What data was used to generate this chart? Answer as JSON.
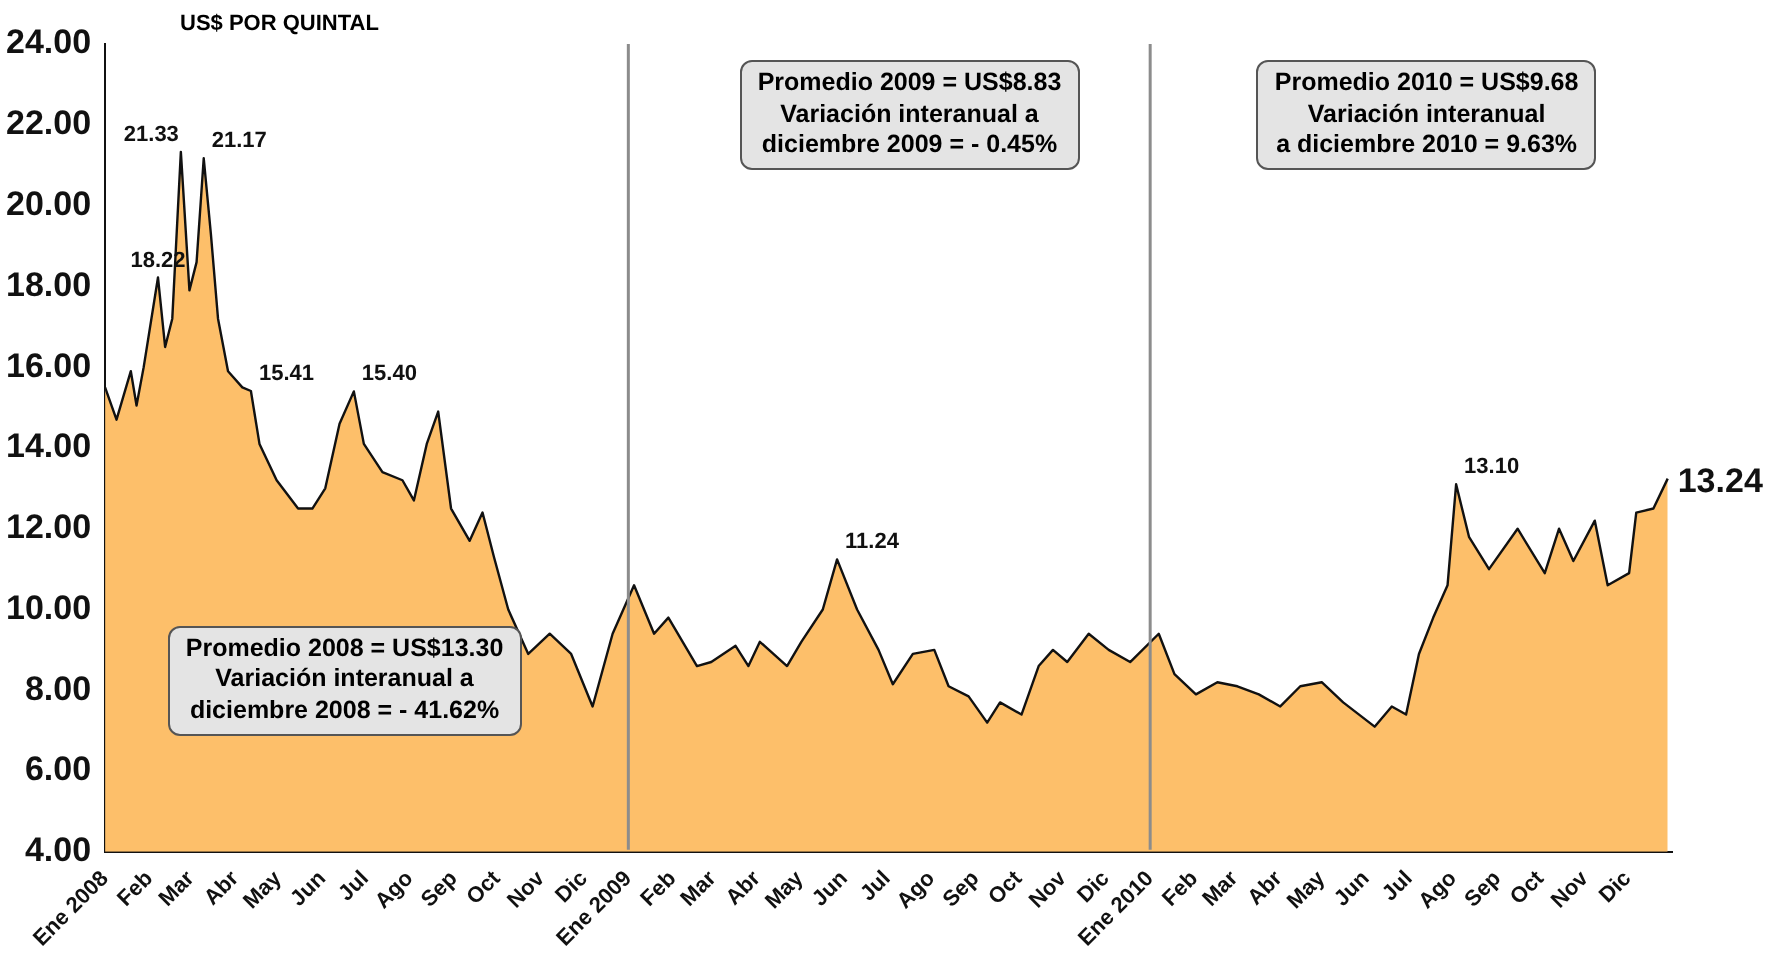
{
  "chart_data": {
    "type": "area",
    "ylabel": "US$ POR QUINTAL",
    "x": [
      "2008-01-01",
      "2008-01-09",
      "2008-01-19",
      "2008-01-23",
      "2008-01-28",
      "2008-02-07",
      "2008-02-12",
      "2008-02-17",
      "2008-02-23",
      "2008-02-29",
      "2008-03-05",
      "2008-03-10",
      "2008-03-15",
      "2008-03-20",
      "2008-03-27",
      "2008-04-06",
      "2008-04-12",
      "2008-04-18",
      "2008-04-30",
      "2008-05-15",
      "2008-05-25",
      "2008-06-03",
      "2008-06-13",
      "2008-06-23",
      "2008-06-30",
      "2008-07-13",
      "2008-07-27",
      "2008-08-04",
      "2008-08-13",
      "2008-08-21",
      "2008-08-30",
      "2008-09-12",
      "2008-09-21",
      "2008-09-29",
      "2008-10-09",
      "2008-10-23",
      "2008-11-07",
      "2008-11-22",
      "2008-12-07",
      "2008-12-21",
      "2009-01-05",
      "2009-01-19",
      "2009-01-29",
      "2009-02-18",
      "2009-02-28",
      "2009-03-17",
      "2009-03-26",
      "2009-04-03",
      "2009-04-22",
      "2009-05-02",
      "2009-05-17",
      "2009-05-27",
      "2009-06-10",
      "2009-06-25",
      "2009-07-05",
      "2009-07-19",
      "2009-08-03",
      "2009-08-13",
      "2009-08-27",
      "2009-09-09",
      "2009-09-18",
      "2009-10-03",
      "2009-10-15",
      "2009-10-25",
      "2009-11-04",
      "2009-11-19",
      "2009-12-03",
      "2009-12-18",
      "2010-01-07",
      "2010-01-18",
      "2010-02-02",
      "2010-02-17",
      "2010-03-03",
      "2010-03-18",
      "2010-04-02",
      "2010-04-16",
      "2010-05-01",
      "2010-05-16",
      "2010-06-07",
      "2010-06-19",
      "2010-06-29",
      "2010-07-08",
      "2010-07-18",
      "2010-07-28",
      "2010-08-03",
      "2010-08-12",
      "2010-08-26",
      "2010-09-15",
      "2010-10-04",
      "2010-10-14",
      "2010-10-24",
      "2010-11-08",
      "2010-11-17",
      "2010-12-02",
      "2010-12-07",
      "2010-12-19",
      "2010-12-29"
    ],
    "series": [
      {
        "color": "#fdbf6a",
        "values": [
          15.5,
          14.7,
          15.9,
          15.05,
          16.0,
          18.22,
          16.5,
          17.2,
          21.33,
          17.9,
          18.6,
          21.17,
          19.3,
          17.2,
          15.9,
          15.5,
          15.41,
          14.1,
          13.2,
          12.5,
          12.5,
          13.0,
          14.6,
          15.4,
          14.1,
          13.4,
          13.2,
          12.7,
          14.1,
          14.9,
          12.5,
          11.7,
          12.4,
          11.3,
          10.0,
          8.9,
          9.4,
          8.9,
          7.6,
          9.4,
          10.6,
          9.4,
          9.8,
          8.6,
          8.7,
          9.1,
          8.6,
          9.2,
          8.6,
          9.2,
          10.0,
          11.24,
          10.0,
          9.0,
          8.15,
          8.9,
          9.0,
          8.1,
          7.85,
          7.2,
          7.7,
          7.4,
          8.6,
          9.0,
          8.7,
          9.4,
          9.0,
          8.7,
          9.4,
          8.4,
          7.9,
          8.2,
          8.1,
          7.9,
          7.6,
          8.1,
          8.2,
          7.7,
          7.1,
          7.6,
          7.4,
          8.9,
          9.8,
          10.6,
          13.1,
          11.8,
          11.0,
          12.0,
          10.9,
          12.0,
          11.2,
          12.2,
          10.6,
          10.9,
          12.4,
          12.5,
          13.24
        ],
        "value_labels": [
          null,
          null,
          null,
          null,
          null,
          "18.22",
          null,
          null,
          "21.33",
          null,
          null,
          "21.17",
          null,
          null,
          null,
          null,
          "15.41",
          null,
          null,
          null,
          null,
          null,
          null,
          "15.40",
          null,
          null,
          null,
          null,
          null,
          null,
          null,
          null,
          null,
          null,
          null,
          null,
          null,
          null,
          null,
          null,
          null,
          null,
          null,
          null,
          null,
          null,
          null,
          null,
          null,
          null,
          null,
          "11.24",
          null,
          null,
          null,
          null,
          null,
          null,
          null,
          null,
          null,
          null,
          null,
          null,
          null,
          null,
          null,
          null,
          null,
          null,
          null,
          null,
          null,
          null,
          null,
          null,
          null,
          null,
          null,
          null,
          null,
          null,
          null,
          null,
          "13.10",
          null,
          null,
          null,
          null,
          null,
          null,
          null,
          null,
          null,
          null,
          null,
          "13.24"
        ]
      }
    ],
    "xlim": [
      "2008-01-01",
      "2011-01-01"
    ],
    "xticks": [
      {
        "value": "2008-01",
        "label": "Ene 2008"
      },
      {
        "value": "2008-02",
        "label": "Feb"
      },
      {
        "value": "2008-03",
        "label": "Mar"
      },
      {
        "value": "2008-04",
        "label": "Abr"
      },
      {
        "value": "2008-05",
        "label": "May"
      },
      {
        "value": "2008-06",
        "label": "Jun"
      },
      {
        "value": "2008-07",
        "label": "Jul"
      },
      {
        "value": "2008-08",
        "label": "Ago"
      },
      {
        "value": "2008-09",
        "label": "Sep"
      },
      {
        "value": "2008-10",
        "label": "Oct"
      },
      {
        "value": "2008-11",
        "label": "Nov"
      },
      {
        "value": "2008-12",
        "label": "Dic"
      },
      {
        "value": "2009-01",
        "label": "Ene 2009"
      },
      {
        "value": "2009-02",
        "label": "Feb"
      },
      {
        "value": "2009-03",
        "label": "Mar"
      },
      {
        "value": "2009-04",
        "label": "Abr"
      },
      {
        "value": "2009-05",
        "label": "May"
      },
      {
        "value": "2009-06",
        "label": "Jun"
      },
      {
        "value": "2009-07",
        "label": "Jul"
      },
      {
        "value": "2009-08",
        "label": "Ago"
      },
      {
        "value": "2009-09",
        "label": "Sep"
      },
      {
        "value": "2009-10",
        "label": "Oct"
      },
      {
        "value": "2009-11",
        "label": "Nov"
      },
      {
        "value": "2009-12",
        "label": "Dic"
      },
      {
        "value": "2010-01",
        "label": "Ene 2010"
      },
      {
        "value": "2010-02",
        "label": "Feb"
      },
      {
        "value": "2010-03",
        "label": "Mar"
      },
      {
        "value": "2010-04",
        "label": "Abr"
      },
      {
        "value": "2010-05",
        "label": "May"
      },
      {
        "value": "2010-06",
        "label": "Jun"
      },
      {
        "value": "2010-07",
        "label": "Jul"
      },
      {
        "value": "2010-08",
        "label": "Ago"
      },
      {
        "value": "2010-09",
        "label": "Sep"
      },
      {
        "value": "2010-10",
        "label": "Oct"
      },
      {
        "value": "2010-11",
        "label": "Nov"
      },
      {
        "value": "2010-12",
        "label": "Dic"
      }
    ],
    "ylim": [
      4,
      24
    ],
    "yticks": [
      {
        "value": 4,
        "label": "4.00"
      },
      {
        "value": 6,
        "label": "6.00"
      },
      {
        "value": 8,
        "label": "8.00"
      },
      {
        "value": 10,
        "label": "10.00"
      },
      {
        "value": 12,
        "label": "12.00"
      },
      {
        "value": 14,
        "label": "14.00"
      },
      {
        "value": 16,
        "label": "16.00"
      },
      {
        "value": 18,
        "label": "18.00"
      },
      {
        "value": 20,
        "label": "20.00"
      },
      {
        "value": 22,
        "label": "22.00"
      },
      {
        "value": 24,
        "label": "24.00"
      }
    ],
    "ref_lines": [
      {
        "axis": "x",
        "value": "2009-01",
        "color": "#8c8c8c"
      },
      {
        "axis": "x",
        "value": "2010-01",
        "color": "#8c8c8c"
      }
    ],
    "annotations": [
      "Promedio 2008 = US$13.30\nVariación interanual a\ndiciembre 2008 = - 41.62%",
      "Promedio 2009 = US$8.83\nVariación interanual a\ndiciembre 2009 = - 0.45%",
      "Promedio 2010 = US$9.68\nVariación interanual\na diciembre 2010 = 9.63%"
    ],
    "grid": false,
    "legend": false,
    "marker": "none"
  }
}
